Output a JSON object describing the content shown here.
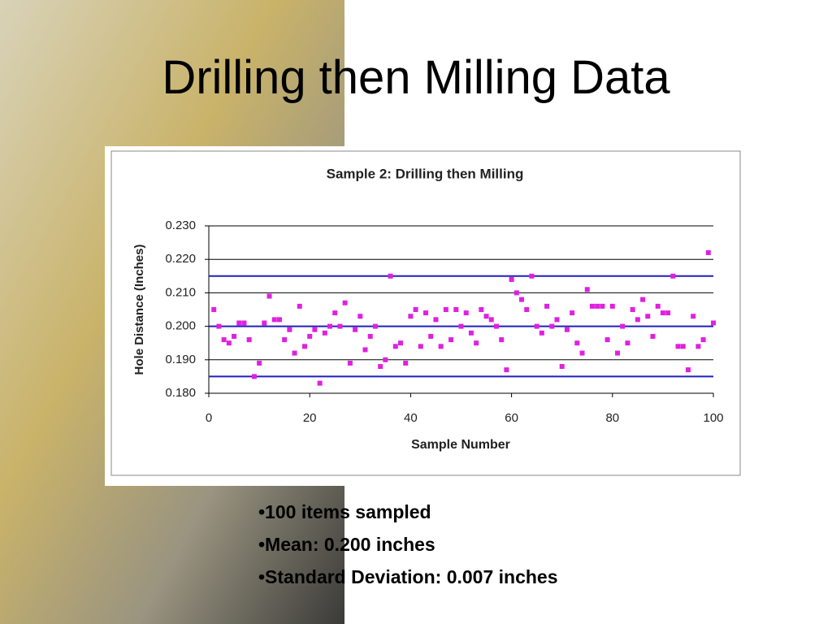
{
  "title": "Drilling then Milling Data",
  "bullets": [
    "•100 items sampled",
    "•Mean: 0.200 inches",
    "•Standard Deviation: 0.007 inches"
  ],
  "chart_data": {
    "type": "scatter",
    "title": "Sample 2: Drilling then Milling",
    "x_label": "Sample Number",
    "y_label": "Hole Distance (Inches)",
    "x": [
      1,
      2,
      3,
      4,
      5,
      6,
      7,
      8,
      9,
      10,
      11,
      12,
      13,
      14,
      15,
      16,
      17,
      18,
      19,
      20,
      21,
      22,
      23,
      24,
      25,
      26,
      27,
      28,
      29,
      30,
      31,
      32,
      33,
      34,
      35,
      36,
      37,
      38,
      39,
      40,
      41,
      42,
      43,
      44,
      45,
      46,
      47,
      48,
      49,
      50,
      51,
      52,
      53,
      54,
      55,
      56,
      57,
      58,
      59,
      60,
      61,
      62,
      63,
      64,
      65,
      66,
      67,
      68,
      69,
      70,
      71,
      72,
      73,
      74,
      75,
      76,
      77,
      78,
      79,
      80,
      81,
      82,
      83,
      84,
      85,
      86,
      87,
      88,
      89,
      90,
      91,
      92,
      93,
      94,
      95,
      96,
      97,
      98,
      99,
      100
    ],
    "series": [
      {
        "color": "#e020e0",
        "values": [
          0.205,
          0.2,
          0.196,
          0.195,
          0.197,
          0.201,
          0.201,
          0.196,
          0.185,
          0.189,
          0.201,
          0.209,
          0.202,
          0.202,
          0.196,
          0.199,
          0.192,
          0.206,
          0.194,
          0.197,
          0.199,
          0.183,
          0.198,
          0.2,
          0.204,
          0.2,
          0.207,
          0.189,
          0.199,
          0.203,
          0.193,
          0.197,
          0.2,
          0.188,
          0.19,
          0.215,
          0.194,
          0.195,
          0.189,
          0.203,
          0.205,
          0.194,
          0.204,
          0.197,
          0.202,
          0.194,
          0.205,
          0.196,
          0.205,
          0.2,
          0.204,
          0.198,
          0.195,
          0.205,
          0.203,
          0.202,
          0.2,
          0.196,
          0.187,
          0.214,
          0.21,
          0.208,
          0.205,
          0.215,
          0.2,
          0.198,
          0.206,
          0.2,
          0.202,
          0.188,
          0.199,
          0.204,
          0.195,
          0.192,
          0.211,
          0.206,
          0.206,
          0.206,
          0.196,
          0.206,
          0.192,
          0.2,
          0.195,
          0.205,
          0.202,
          0.208,
          0.203,
          0.197,
          0.206,
          0.204,
          0.204,
          0.215,
          0.194,
          0.194,
          0.187,
          0.203,
          0.194,
          0.196,
          0.222,
          0.201
        ]
      }
    ],
    "reference_lines": [
      0.185,
      0.2,
      0.215
    ],
    "reference_color": "#1f1fbf",
    "xlim": [
      0,
      100
    ],
    "xticks": [
      0,
      20,
      40,
      60,
      80,
      100
    ],
    "ylim": [
      0.18,
      0.23
    ],
    "yticks": [
      {
        "value": 0.18,
        "label": "0.180"
      },
      {
        "value": 0.19,
        "label": "0.190"
      },
      {
        "value": 0.2,
        "label": "0.200"
      },
      {
        "value": 0.21,
        "label": "0.210"
      },
      {
        "value": 0.22,
        "label": "0.220"
      },
      {
        "value": 0.23,
        "label": "0.230"
      }
    ],
    "grid": true
  }
}
